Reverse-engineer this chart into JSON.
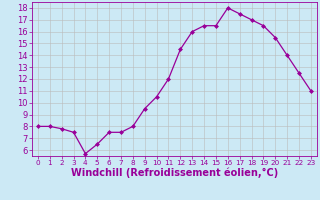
{
  "x": [
    0,
    1,
    2,
    3,
    4,
    5,
    6,
    7,
    8,
    9,
    10,
    11,
    12,
    13,
    14,
    15,
    16,
    17,
    18,
    19,
    20,
    21,
    22,
    23
  ],
  "y": [
    8.0,
    8.0,
    7.8,
    7.5,
    5.7,
    6.5,
    7.5,
    7.5,
    8.0,
    9.5,
    10.5,
    12.0,
    14.5,
    16.0,
    16.5,
    16.5,
    18.0,
    17.5,
    17.0,
    16.5,
    15.5,
    14.0,
    12.5,
    11.0
  ],
  "line_color": "#990099",
  "marker": "D",
  "marker_size": 2.0,
  "bg_color": "#cce9f5",
  "grid_color": "#bbbbbb",
  "xlabel": "Windchill (Refroidissement éolien,°C)",
  "xlabel_color": "#990099",
  "ylim": [
    5.5,
    18.5
  ],
  "xlim": [
    -0.5,
    23.5
  ],
  "yticks": [
    6,
    7,
    8,
    9,
    10,
    11,
    12,
    13,
    14,
    15,
    16,
    17,
    18
  ],
  "xticks": [
    0,
    1,
    2,
    3,
    4,
    5,
    6,
    7,
    8,
    9,
    10,
    11,
    12,
    13,
    14,
    15,
    16,
    17,
    18,
    19,
    20,
    21,
    22,
    23
  ],
  "tick_color": "#990099",
  "ytick_fontsize": 6.0,
  "xtick_fontsize": 5.2,
  "xlabel_fontsize": 7.0
}
